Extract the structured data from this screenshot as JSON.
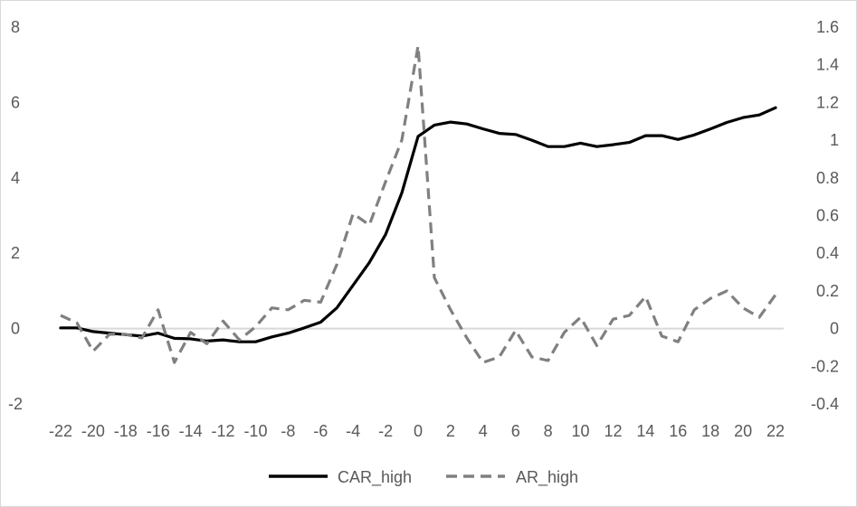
{
  "chart_data": {
    "type": "line",
    "title": "",
    "xlabel": "",
    "ylabel": "",
    "legend_position": "bottom",
    "grid": false,
    "x": [
      -22,
      -21,
      -20,
      -19,
      -18,
      -17,
      -16,
      -15,
      -14,
      -13,
      -12,
      -11,
      -10,
      -9,
      -8,
      -7,
      -6,
      -5,
      -4,
      -3,
      -2,
      -1,
      0,
      1,
      2,
      3,
      4,
      5,
      6,
      7,
      8,
      9,
      10,
      11,
      12,
      13,
      14,
      15,
      16,
      17,
      18,
      19,
      20,
      21,
      22
    ],
    "x_ticks": [
      -22,
      -20,
      -18,
      -16,
      -14,
      -12,
      -10,
      -8,
      -6,
      -4,
      -2,
      0,
      2,
      4,
      6,
      8,
      10,
      12,
      14,
      16,
      18,
      20,
      22
    ],
    "x_tick_labels": [
      "-22",
      "-20",
      "-18",
      "-16",
      "-14",
      "-12",
      "-10",
      "-8",
      "-6",
      "-4",
      "-2",
      "0",
      "2",
      "4",
      "6",
      "8",
      "10",
      "12",
      "14",
      "16",
      "18",
      "20",
      "22"
    ],
    "y_left": {
      "range": [
        -2,
        8
      ],
      "ticks": [
        -2,
        0,
        2,
        4,
        6,
        8
      ],
      "tick_labels": [
        "-2",
        "0",
        "2",
        "4",
        "6",
        "8"
      ]
    },
    "y_right": {
      "range": [
        -0.4,
        1.6
      ],
      "ticks": [
        -0.4,
        -0.2,
        0,
        0.2,
        0.4,
        0.6,
        0.8,
        1,
        1.2,
        1.4,
        1.6
      ],
      "tick_labels": [
        "-0.4",
        "-0.2",
        "0",
        "0.2",
        "0.4",
        "0.6",
        "0.8",
        "1",
        "1.2",
        "1.4",
        "1.6"
      ]
    },
    "series": [
      {
        "name": "CAR_high",
        "axis": "left",
        "style": "solid",
        "color": "#000000",
        "values": [
          0.02,
          0.02,
          -0.08,
          -0.12,
          -0.16,
          -0.2,
          -0.12,
          -0.26,
          -0.27,
          -0.33,
          -0.3,
          -0.35,
          -0.35,
          -0.22,
          -0.12,
          0.02,
          0.17,
          0.55,
          1.15,
          1.75,
          2.5,
          3.6,
          5.1,
          5.4,
          5.48,
          5.43,
          5.3,
          5.18,
          5.15,
          5.0,
          4.83,
          4.83,
          4.92,
          4.83,
          4.88,
          4.94,
          5.12,
          5.12,
          5.02,
          5.14,
          5.3,
          5.47,
          5.6,
          5.67,
          5.86
        ]
      },
      {
        "name": "AR_high",
        "axis": "right",
        "style": "dashed",
        "color": "#808080",
        "values": [
          0.07,
          0.03,
          -0.12,
          -0.03,
          -0.03,
          -0.05,
          0.1,
          -0.18,
          -0.02,
          -0.08,
          0.04,
          -0.06,
          0.01,
          0.11,
          0.1,
          0.15,
          0.14,
          0.34,
          0.61,
          0.55,
          0.78,
          1.0,
          1.5,
          0.27,
          0.1,
          -0.05,
          -0.18,
          -0.15,
          -0.01,
          -0.15,
          -0.17,
          -0.02,
          0.06,
          -0.09,
          0.05,
          0.07,
          0.17,
          -0.04,
          -0.07,
          0.1,
          0.16,
          0.2,
          0.11,
          0.06,
          0.18
        ]
      }
    ]
  }
}
